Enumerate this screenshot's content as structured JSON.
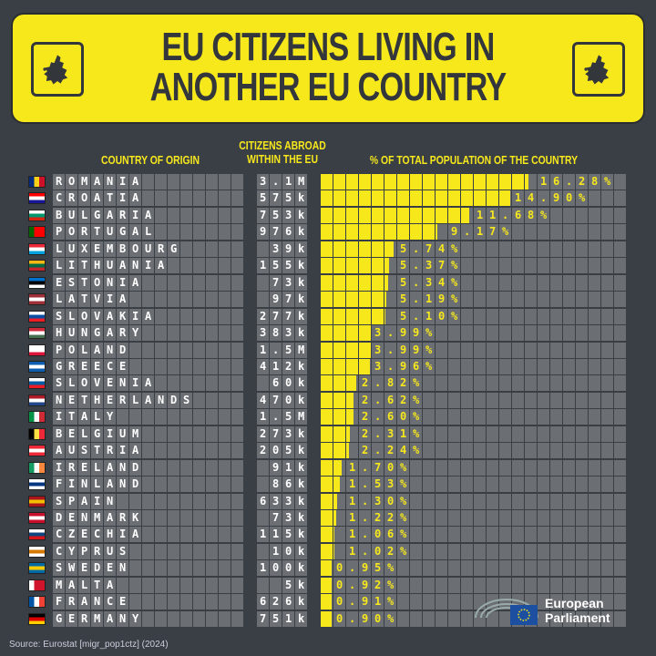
{
  "header": {
    "title_line1": "EU CITIZENS LIVING IN",
    "title_line2": "ANOTHER EU COUNTRY"
  },
  "columns": {
    "country": "COUNTRY OF ORIGIN",
    "citizens_line1": "CITIZENS ABROAD",
    "citizens_line2": "WITHIN THE EU",
    "percent": "% OF TOTAL POPULATION OF THE COUNTRY"
  },
  "footer": {
    "source": "Source: Eurostat [migr_pop1ctz] (2024)",
    "logo_line1": "European",
    "logo_line2": "Parliament"
  },
  "colors": {
    "accent": "#f7e81c",
    "background": "#3a3f45",
    "cell": "#6b6f74"
  },
  "chart_data": {
    "type": "bar",
    "orientation": "horizontal",
    "title": "EU CITIZENS LIVING IN ANOTHER EU COUNTRY",
    "xlabel": "% OF TOTAL POPULATION OF THE COUNTRY",
    "xlim": [
      0,
      24
    ],
    "rows": [
      {
        "country": "ROMANIA",
        "citizens": "3.1M",
        "percent": 16.28,
        "label": "16.28%",
        "flag": [
          "v",
          "#002b7f",
          "#fcd116",
          "#ce1126"
        ]
      },
      {
        "country": "CROATIA",
        "citizens": "575k",
        "percent": 14.9,
        "label": "14.90%",
        "flag": [
          "h",
          "#ff0000",
          "#ffffff",
          "#171796"
        ]
      },
      {
        "country": "BULGARIA",
        "citizens": "753k",
        "percent": 11.68,
        "label": "11.68%",
        "flag": [
          "h",
          "#ffffff",
          "#00966e",
          "#d62612"
        ]
      },
      {
        "country": "PORTUGAL",
        "citizens": "976k",
        "percent": 9.17,
        "label": "9.17%",
        "flag": [
          "v",
          "#006600",
          "#ff0000",
          "#ff0000"
        ]
      },
      {
        "country": "LUXEMBOURG",
        "citizens": "39k",
        "percent": 5.74,
        "label": "5.74%",
        "flag": [
          "h",
          "#ed2939",
          "#ffffff",
          "#00a1de"
        ]
      },
      {
        "country": "LITHUANIA",
        "citizens": "155k",
        "percent": 5.37,
        "label": "5.37%",
        "flag": [
          "h",
          "#fdb913",
          "#006a44",
          "#c1272d"
        ]
      },
      {
        "country": "ESTONIA",
        "citizens": "73k",
        "percent": 5.34,
        "label": "5.34%",
        "flag": [
          "h",
          "#0072ce",
          "#000000",
          "#ffffff"
        ]
      },
      {
        "country": "LATVIA",
        "citizens": "97k",
        "percent": 5.19,
        "label": "5.19%",
        "flag": [
          "h",
          "#9e3039",
          "#ffffff",
          "#9e3039"
        ]
      },
      {
        "country": "SLOVAKIA",
        "citizens": "277k",
        "percent": 5.1,
        "label": "5.10%",
        "flag": [
          "h",
          "#ffffff",
          "#0b4ea2",
          "#ee1c25"
        ]
      },
      {
        "country": "HUNGARY",
        "citizens": "383k",
        "percent": 3.99,
        "label": "3.99%",
        "flag": [
          "h",
          "#ce2939",
          "#ffffff",
          "#477050"
        ]
      },
      {
        "country": "POLAND",
        "citizens": "1.5M",
        "percent": 3.99,
        "label": "3.99%",
        "flag": [
          "h",
          "#ffffff",
          "#ffffff",
          "#dc143c"
        ]
      },
      {
        "country": "GREECE",
        "citizens": "412k",
        "percent": 3.96,
        "label": "3.96%",
        "flag": [
          "h",
          "#0d5eaf",
          "#ffffff",
          "#0d5eaf"
        ]
      },
      {
        "country": "SLOVENIA",
        "citizens": "60k",
        "percent": 2.82,
        "label": "2.82%",
        "flag": [
          "h",
          "#ffffff",
          "#005da4",
          "#ed1c24"
        ]
      },
      {
        "country": "NETHERLANDS",
        "citizens": "470k",
        "percent": 2.62,
        "label": "2.62%",
        "flag": [
          "h",
          "#ae1c28",
          "#ffffff",
          "#21468b"
        ]
      },
      {
        "country": "ITALY",
        "citizens": "1.5M",
        "percent": 2.6,
        "label": "2.60%",
        "flag": [
          "v",
          "#009246",
          "#ffffff",
          "#ce2b37"
        ]
      },
      {
        "country": "BELGIUM",
        "citizens": "273k",
        "percent": 2.31,
        "label": "2.31%",
        "flag": [
          "v",
          "#000000",
          "#fae042",
          "#ed2939"
        ]
      },
      {
        "country": "AUSTRIA",
        "citizens": "205k",
        "percent": 2.24,
        "label": "2.24%",
        "flag": [
          "h",
          "#ed2939",
          "#ffffff",
          "#ed2939"
        ]
      },
      {
        "country": "IRELAND",
        "citizens": "91k",
        "percent": 1.7,
        "label": "1.70%",
        "flag": [
          "v",
          "#169b62",
          "#ffffff",
          "#ff883e"
        ]
      },
      {
        "country": "FINLAND",
        "citizens": "86k",
        "percent": 1.53,
        "label": "1.53%",
        "flag": [
          "h",
          "#ffffff",
          "#003580",
          "#ffffff"
        ]
      },
      {
        "country": "SPAIN",
        "citizens": "633k",
        "percent": 1.3,
        "label": "1.30%",
        "flag": [
          "h",
          "#aa151b",
          "#f1bf00",
          "#aa151b"
        ]
      },
      {
        "country": "DENMARK",
        "citizens": "73k",
        "percent": 1.22,
        "label": "1.22%",
        "flag": [
          "h",
          "#c8102e",
          "#ffffff",
          "#c8102e"
        ]
      },
      {
        "country": "CZECHIA",
        "citizens": "115k",
        "percent": 1.06,
        "label": "1.06%",
        "flag": [
          "h",
          "#ffffff",
          "#11457e",
          "#d7141a"
        ]
      },
      {
        "country": "CYPRUS",
        "citizens": "10k",
        "percent": 1.02,
        "label": "1.02%",
        "flag": [
          "h",
          "#ffffff",
          "#d57800",
          "#ffffff"
        ]
      },
      {
        "country": "SWEDEN",
        "citizens": "100k",
        "percent": 0.95,
        "label": "0.95%",
        "flag": [
          "h",
          "#006aa7",
          "#fecc00",
          "#006aa7"
        ]
      },
      {
        "country": "MALTA",
        "citizens": "5k",
        "percent": 0.92,
        "label": "0.92%",
        "flag": [
          "v",
          "#ffffff",
          "#cf142b",
          "#cf142b"
        ]
      },
      {
        "country": "FRANCE",
        "citizens": "626k",
        "percent": 0.91,
        "label": "0.91%",
        "flag": [
          "v",
          "#0055a4",
          "#ffffff",
          "#ef4135"
        ]
      },
      {
        "country": "GERMANY",
        "citizens": "751k",
        "percent": 0.9,
        "label": "0.90%",
        "flag": [
          "h",
          "#000000",
          "#dd0000",
          "#ffce00"
        ]
      }
    ]
  }
}
